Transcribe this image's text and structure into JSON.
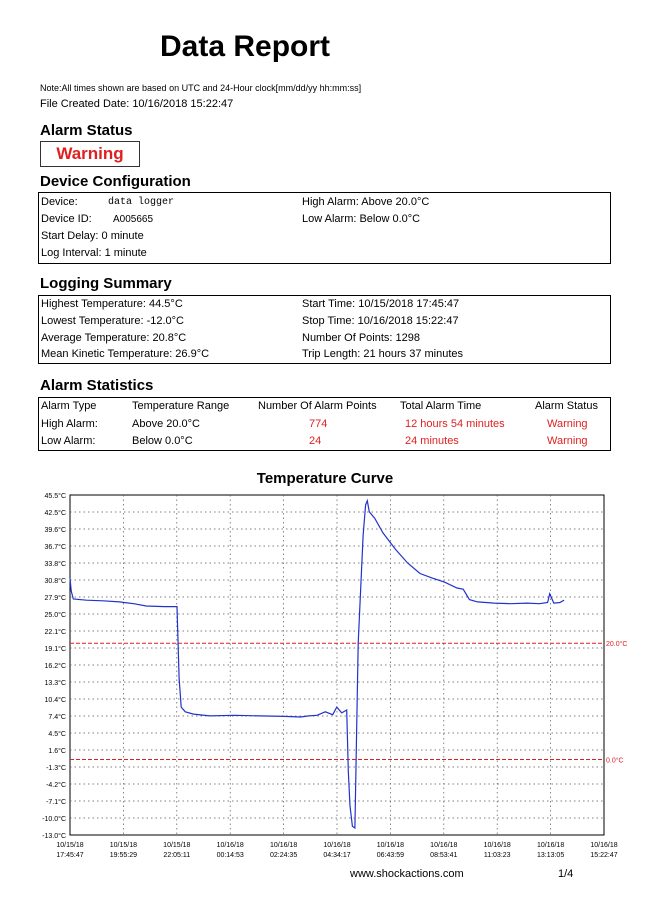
{
  "report": {
    "title": "Data Report",
    "note": "Note:All times shown are based on UTC and 24-Hour clock[mm/dd/yy  hh:mm:ss]",
    "file_created": "File Created Date:  10/16/2018   15:22:47"
  },
  "alarm_status": {
    "heading": "Alarm Status",
    "value": "Warning"
  },
  "device_config": {
    "heading": "Device Configuration",
    "device_label": "Device:",
    "device_value": "data logger",
    "id_label": "Device ID:",
    "id_value": "A005665",
    "start_delay": "Start Delay:   0 minute",
    "log_interval": "Log Interval:  1 minute",
    "high_alarm": "High Alarm:  Above 20.0°C",
    "low_alarm": "Low Alarm:  Below 0.0°C"
  },
  "logging_summary": {
    "heading": "Logging Summary",
    "highest": "Highest Temperature:  44.5°C",
    "lowest": "Lowest Temperature:    -12.0°C",
    "average": "Average Temperature:   20.8°C",
    "mkt": "Mean Kinetic Temperature:  26.9°C",
    "start": "Start Time:   10/15/2018  17:45:47",
    "stop": "Stop Time:   10/16/2018  15:22:47",
    "points": "Number Of Points:  1298",
    "trip": "Trip Length:   21 hours 37 minutes"
  },
  "alarm_statistics": {
    "heading": "Alarm Statistics",
    "headers": [
      "Alarm Type",
      "Temperature Range",
      "Number Of Alarm Points",
      "Total Alarm Time",
      "Alarm Status"
    ],
    "rows": [
      [
        "High Alarm:",
        "Above  20.0°C",
        "774",
        "12 hours 54 minutes",
        "Warning"
      ],
      [
        "Low Alarm:",
        "Below   0.0°C",
        "24",
        "24 minutes",
        "Warning"
      ]
    ]
  },
  "chart_data": {
    "type": "line",
    "title": "Temperature Curve",
    "y_ticks": [
      "45.5°C",
      "42.5°C",
      "39.6°C",
      "36.7°C",
      "33.8°C",
      "30.8°C",
      "27.9°C",
      "25.0°C",
      "22.1°C",
      "19.1°C",
      "16.2°C",
      "13.3°C",
      "10.4°C",
      "7.4°C",
      "4.5°C",
      "1.6°C",
      "-1.3°C",
      "-4.2°C",
      "-7.1°C",
      "-10.0°C",
      "-13.0°C"
    ],
    "ylim": [
      -13.0,
      45.5
    ],
    "x_ticks": [
      [
        "10/15/18",
        "17:45:47"
      ],
      [
        "10/15/18",
        "19:55:29"
      ],
      [
        "10/15/18",
        "22:05:11"
      ],
      [
        "10/16/18",
        "00:14:53"
      ],
      [
        "10/16/18",
        "02:24:35"
      ],
      [
        "10/16/18",
        "04:34:17"
      ],
      [
        "10/16/18",
        "06:43:59"
      ],
      [
        "10/16/18",
        "08:53:41"
      ],
      [
        "10/16/18",
        "11:03:23"
      ],
      [
        "10/16/18",
        "13:13:05"
      ],
      [
        "10/16/18",
        "15:22:47"
      ]
    ],
    "xlim_minutes": [
      0,
      1297
    ],
    "thresholds": [
      {
        "label": "20.0°C",
        "value": 20.0,
        "color": "#e02020"
      },
      {
        "label": "0.0°C",
        "value": 0.0,
        "color": "#e02020"
      }
    ],
    "series": [
      {
        "color": "#2233cc",
        "points_minutes_temp": [
          [
            0,
            31.2
          ],
          [
            3,
            29.0
          ],
          [
            8,
            27.6
          ],
          [
            40,
            27.4
          ],
          [
            80,
            27.3
          ],
          [
            120,
            27.1
          ],
          [
            155,
            26.8
          ],
          [
            185,
            26.4
          ],
          [
            230,
            26.3
          ],
          [
            260,
            26.3
          ],
          [
            265,
            14.0
          ],
          [
            270,
            9.0
          ],
          [
            280,
            8.2
          ],
          [
            300,
            7.8
          ],
          [
            340,
            7.5
          ],
          [
            400,
            7.6
          ],
          [
            460,
            7.5
          ],
          [
            520,
            7.4
          ],
          [
            560,
            7.3
          ],
          [
            580,
            7.5
          ],
          [
            600,
            7.6
          ],
          [
            620,
            8.2
          ],
          [
            638,
            7.7
          ],
          [
            648,
            9.0
          ],
          [
            660,
            8.0
          ],
          [
            672,
            8.5
          ],
          [
            676,
            -2.0
          ],
          [
            680,
            -8.0
          ],
          [
            686,
            -11.5
          ],
          [
            692,
            -11.8
          ],
          [
            700,
            20.0
          ],
          [
            712,
            38.5
          ],
          [
            718,
            43.8
          ],
          [
            722,
            44.5
          ],
          [
            727,
            42.6
          ],
          [
            740,
            41.5
          ],
          [
            760,
            39.0
          ],
          [
            790,
            36.2
          ],
          [
            820,
            33.8
          ],
          [
            850,
            32.0
          ],
          [
            880,
            31.2
          ],
          [
            910,
            30.5
          ],
          [
            940,
            29.5
          ],
          [
            955,
            29.3
          ],
          [
            970,
            27.5
          ],
          [
            990,
            27.1
          ],
          [
            1030,
            26.9
          ],
          [
            1070,
            26.8
          ],
          [
            1110,
            26.9
          ],
          [
            1140,
            26.8
          ],
          [
            1160,
            27.0
          ],
          [
            1165,
            28.5
          ],
          [
            1175,
            26.9
          ],
          [
            1190,
            27.0
          ],
          [
            1200,
            27.4
          ]
        ]
      }
    ]
  },
  "footer": {
    "url": "www.shockactions.com",
    "page": "1/4"
  },
  "colors": {
    "alarm_red": "#e02020",
    "curve_blue": "#2233cc"
  }
}
